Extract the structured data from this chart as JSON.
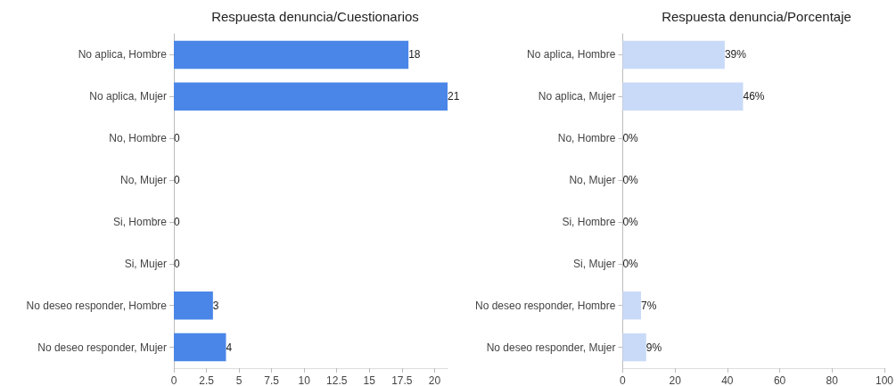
{
  "chart_data": [
    {
      "type": "bar",
      "orientation": "horizontal",
      "title": "Respuesta denuncia/Cuestionarios",
      "categories": [
        "No aplica, Hombre",
        "No aplica, Mujer",
        "No, Hombre",
        "No, Mujer",
        "Si, Hombre",
        "Si, Mujer",
        "No deseo responder, Hombre",
        "No deseo responder, Mujer"
      ],
      "values": [
        18,
        21,
        0,
        0,
        0,
        0,
        3,
        4
      ],
      "color": "#4a86e8",
      "xlim": [
        0,
        21
      ],
      "xticks": [
        0,
        2.5,
        5,
        7.5,
        10,
        12.5,
        15,
        17.5,
        20
      ],
      "data_labels": true,
      "grid": false
    },
    {
      "type": "bar",
      "orientation": "horizontal",
      "title": "Respuesta denuncia/Porcentaje",
      "categories": [
        "No aplica, Hombre",
        "No aplica, Mujer",
        "No, Hombre",
        "No, Mujer",
        "Si, Hombre",
        "Si, Mujer",
        "No deseo responder, Hombre",
        "No deseo responder, Mujer"
      ],
      "values": [
        39,
        46,
        0,
        0,
        0,
        0,
        7,
        9
      ],
      "value_labels": [
        "39%",
        "46%",
        "0%",
        "0%",
        "0%",
        "0%",
        "7%",
        "9%"
      ],
      "color": "#c9daf8",
      "xlim": [
        0,
        100
      ],
      "xticks": [
        0,
        20,
        40,
        60,
        80,
        100
      ],
      "grid": false
    }
  ]
}
